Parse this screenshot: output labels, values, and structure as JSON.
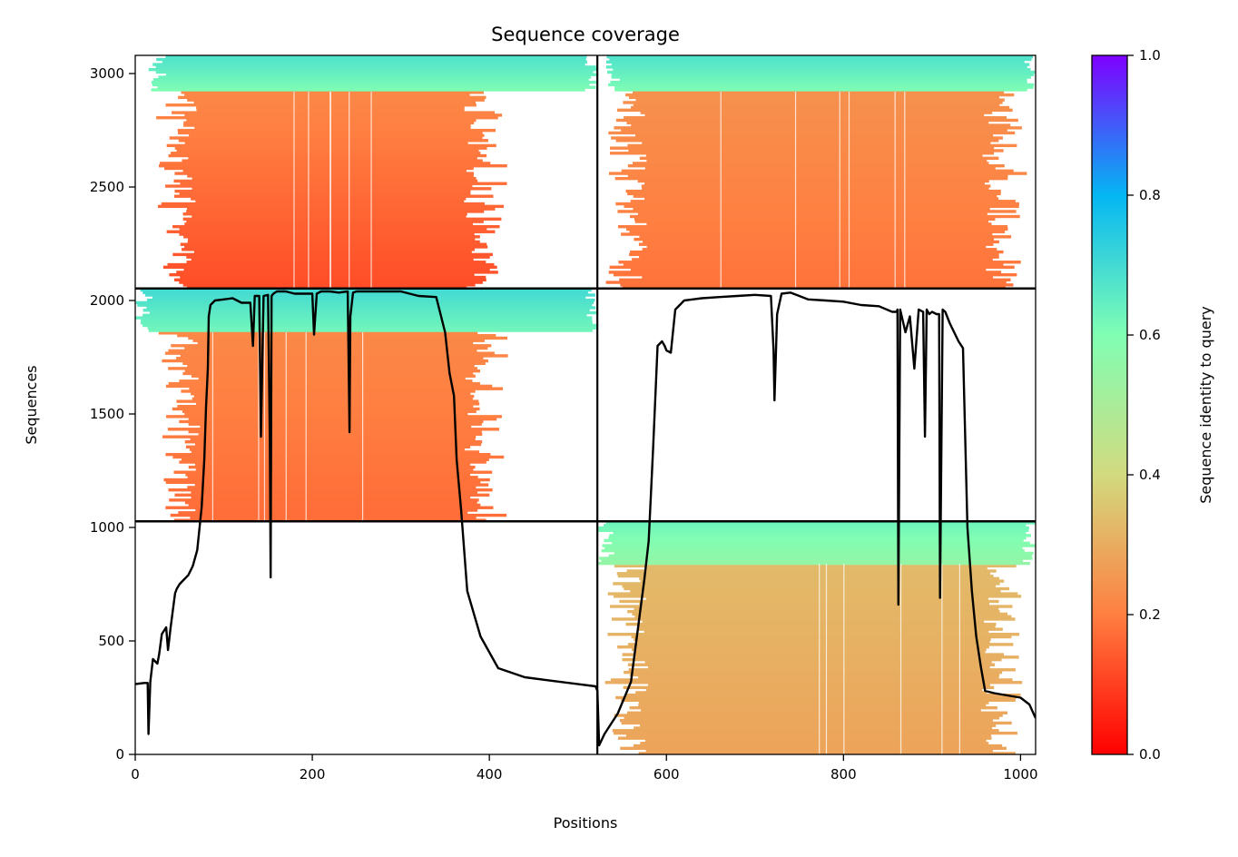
{
  "chart_data": {
    "type": "heatmap",
    "title": "Sequence coverage",
    "xlabel": "Positions",
    "ylabel": "Sequences",
    "xlim": [
      0,
      1017
    ],
    "ylim": [
      0,
      3080
    ],
    "x_ticks": [
      0,
      200,
      400,
      600,
      800,
      1000
    ],
    "y_ticks": [
      0,
      500,
      1000,
      1500,
      2000,
      2500,
      3000
    ],
    "grid": false,
    "legend": "none",
    "colorbar": {
      "label": "Sequence identity to query",
      "range": [
        0,
        1
      ],
      "ticks": [
        0.0,
        0.2,
        0.4,
        0.6,
        0.8,
        1.0
      ],
      "tick_labels": [
        "0.0",
        "0.2",
        "0.4",
        "0.6",
        "0.8",
        "1.0"
      ],
      "colormap": "rainbow",
      "colors": [
        "#ff0000",
        "#ff7f41",
        "#d2da7f",
        "#80feb3",
        "#04b6f3",
        "#7f00ff"
      ]
    },
    "block_dividers": {
      "x": [
        522
      ],
      "y": [
        1027,
        2053
      ]
    },
    "alignment_blocks": [
      {
        "x0": 15,
        "x1": 522,
        "y0": 2053,
        "y1": 3080,
        "core_x0": 82,
        "core_x1": 360,
        "wide_x0": 15,
        "wide_x1": 522,
        "high_y0": 2920,
        "identity_high": 0.6,
        "identity_low": 0.22,
        "identity_bottom": 0.12
      },
      {
        "x0": 522,
        "x1": 1017,
        "y0": 2053,
        "y1": 3080,
        "core_x0": 590,
        "core_x1": 945,
        "wide_x0": 530,
        "wide_x1": 1017,
        "high_y0": 2920,
        "identity_high": 0.6,
        "identity_low": 0.24,
        "identity_bottom": 0.18
      },
      {
        "x0": 0,
        "x1": 522,
        "y0": 1027,
        "y1": 2053,
        "core_x0": 85,
        "core_x1": 360,
        "wide_x0": 0,
        "wide_x1": 522,
        "high_y0": 1860,
        "identity_high": 0.62,
        "identity_low": 0.22,
        "identity_bottom": 0.17
      },
      {
        "x0": 522,
        "x1": 1017,
        "y0": 0,
        "y1": 1027,
        "core_x0": 590,
        "core_x1": 945,
        "wide_x0": 522,
        "wide_x1": 1017,
        "high_y0": 840,
        "identity_high": 0.55,
        "identity_low": 0.33,
        "identity_bottom": 0.28
      }
    ],
    "coverage_line": {
      "color": "#000000",
      "x": [
        0,
        10,
        14,
        15,
        17,
        20,
        25,
        27,
        30,
        35,
        37,
        40,
        45,
        47,
        50,
        55,
        60,
        65,
        70,
        75,
        78,
        80,
        82,
        83,
        85,
        90,
        100,
        110,
        120,
        130,
        133,
        135,
        140,
        142,
        145,
        150,
        152,
        153,
        154,
        156,
        160,
        170,
        180,
        190,
        200,
        202,
        205,
        210,
        220,
        230,
        240,
        242,
        243,
        246,
        250,
        260,
        270,
        280,
        300,
        320,
        340,
        350,
        355,
        360,
        363,
        368,
        375,
        390,
        410,
        440,
        470,
        520,
        522,
        524,
        530,
        545,
        560,
        570,
        575,
        580,
        585,
        590,
        595,
        598,
        600,
        605,
        610,
        620,
        640,
        660,
        680,
        700,
        718,
        721,
        722,
        725,
        730,
        740,
        750,
        760,
        780,
        800,
        820,
        840,
        855,
        860,
        861,
        862,
        864,
        870,
        875,
        880,
        885,
        890,
        892,
        894,
        897,
        900,
        905,
        908,
        909,
        912,
        915,
        920,
        930,
        935,
        940,
        945,
        950,
        955,
        960,
        970,
        985,
        1000,
        1010,
        1017
      ],
      "y": [
        310,
        315,
        315,
        90,
        320,
        420,
        400,
        440,
        530,
        560,
        460,
        560,
        710,
        730,
        750,
        770,
        790,
        830,
        900,
        1090,
        1300,
        1530,
        1700,
        1930,
        1980,
        2000,
        2005,
        2010,
        1990,
        1990,
        1800,
        2020,
        2020,
        1400,
        2020,
        2025,
        1380,
        780,
        2020,
        2030,
        2040,
        2040,
        2030,
        2030,
        2030,
        1850,
        2030,
        2040,
        2040,
        2035,
        2040,
        1420,
        1930,
        2035,
        2040,
        2040,
        2040,
        2040,
        2040,
        2020,
        2015,
        1860,
        1680,
        1580,
        1300,
        1080,
        720,
        520,
        380,
        340,
        325,
        300,
        280,
        40,
        90,
        180,
        320,
        620,
        770,
        940,
        1350,
        1800,
        1820,
        1800,
        1780,
        1770,
        1960,
        2000,
        2010,
        2015,
        2020,
        2025,
        2020,
        1780,
        1560,
        1940,
        2030,
        2035,
        2020,
        2005,
        2000,
        1995,
        1980,
        1975,
        1950,
        1950,
        1960,
        660,
        1960,
        1860,
        1930,
        1700,
        1960,
        1950,
        1400,
        1960,
        1940,
        1950,
        1940,
        1940,
        690,
        1960,
        1950,
        1900,
        1820,
        1790,
        1000,
        720,
        520,
        390,
        280,
        270,
        260,
        250,
        220,
        160
      ]
    }
  }
}
